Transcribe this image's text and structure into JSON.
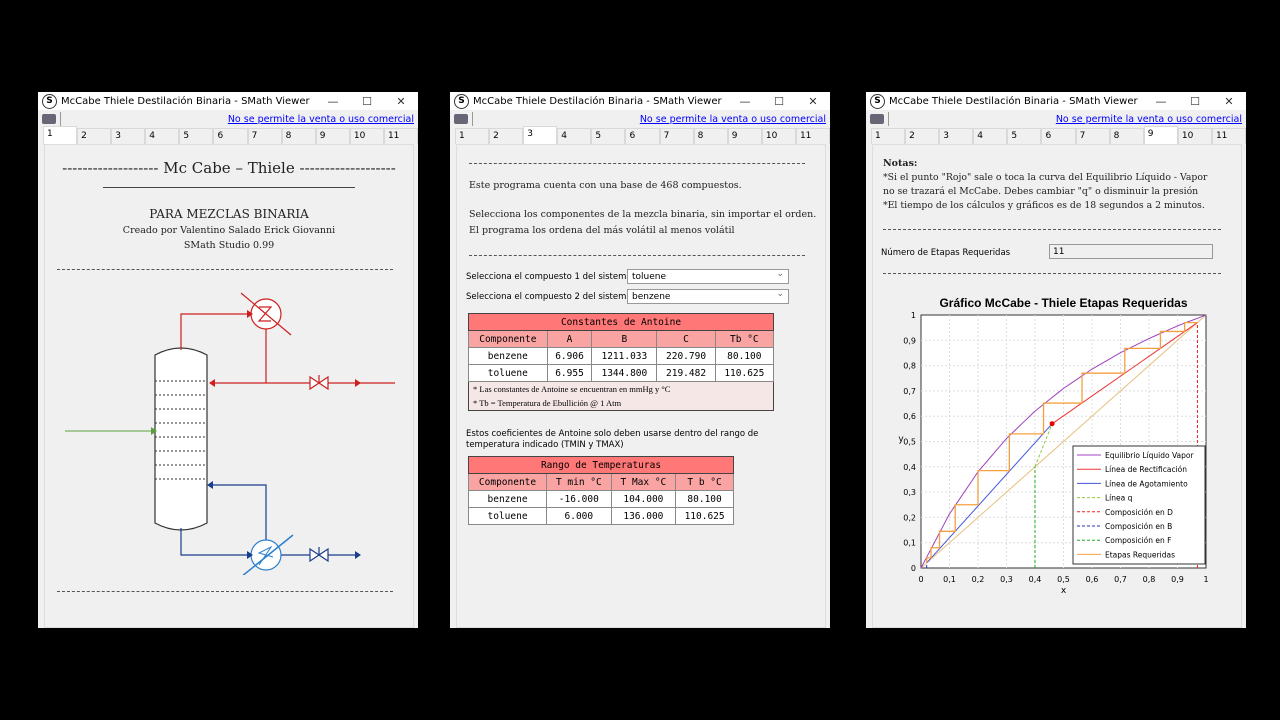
{
  "window_title": "McCabe Thiele Destilación Binaria - SMath Viewer",
  "window_controls": {
    "minimize": "—",
    "maximize": "☐",
    "close": "✕"
  },
  "notice_link": "No se permite la venta o uso comercial",
  "tabs": [
    "1",
    "2",
    "3",
    "4",
    "5",
    "6",
    "7",
    "8",
    "9",
    "10",
    "11"
  ],
  "windows": [
    {
      "active_tab": "1",
      "heading": "Mc Cabe – Thiele",
      "subtitle": "PARA MEZCLAS BINARIA",
      "author": "Creado por Valentino Salado Erick Giovanni",
      "software": "SMath Studio 0.99",
      "diagram_colors": {
        "top": "#cc1f1f",
        "bottom": "#1a3c8c",
        "feed": "#5aa03c",
        "reboiler": "#2a7fcf"
      }
    },
    {
      "active_tab": "3",
      "intro": "Este programa cuenta con una base de 468 compuestos.",
      "instr1": "Selecciona los componentes de la mezcla binaria, sin importar el orden.",
      "instr2": "El programa los ordena del más volátil al menos volátil",
      "select1": {
        "label": "Selecciona el compuesto 1 del sistema",
        "value": "toluene"
      },
      "select2": {
        "label": "Selecciona el compuesto 2 del sistema",
        "value": "benzene"
      },
      "antoine": {
        "title": "Constantes de Antoine",
        "headers": [
          "Componente",
          "A",
          "B",
          "C",
          "Tb °C"
        ],
        "rows": [
          [
            "benzene",
            "6.906",
            "1211.033",
            "220.790",
            "80.100"
          ],
          [
            "toluene",
            "6.955",
            "1344.800",
            "219.482",
            "110.625"
          ]
        ],
        "note1": "* Las constantes de Antoine se encuentran en    mmHg y °C",
        "note2": "* Tb = Temperatura de Ebullición @ 1 Atm"
      },
      "range_note": "Estos coeficientes de Antoine solo deben usarse dentro del rango de temperatura indicado (TMIN y TMAX)",
      "ranges": {
        "title": "Rango de Temperaturas",
        "headers": [
          "Componente",
          "T min °C",
          "T Max °C",
          "T b  °C"
        ],
        "rows": [
          [
            "benzene",
            "-16.000",
            "104.000",
            "80.100"
          ],
          [
            "toluene",
            "6.000",
            "136.000",
            "110.625"
          ]
        ]
      }
    },
    {
      "active_tab": "9",
      "notes_title": "Notas:",
      "note1": "*Si el punto \"Rojo\" sale o toca la curva del Equilibrio Líquido - Vapor",
      "note2": "no se trazará el McCabe. Debes cambiar \"q\" o disminuir la presión",
      "note3": "*El tiempo de los cálculos y gráficos es de 18 segundos a 2 minutos.",
      "stages_label": "Número de Etapas Requeridas",
      "stages_value": "11"
    }
  ],
  "chart_data": {
    "type": "line",
    "title": "Gráfico McCabe - Thiele  Etapas Requeridas",
    "xlabel": "x",
    "ylabel": "y",
    "xlim": [
      0,
      1
    ],
    "ylim": [
      0,
      1
    ],
    "grid": true,
    "legend": "bottom-right",
    "ticks": [
      "0",
      "0,1",
      "0,2",
      "0,3",
      "0,4",
      "0,5",
      "0,6",
      "0,7",
      "0,8",
      "0,9",
      "1"
    ],
    "series": [
      {
        "name": "Equilibrio Líquido Vapor",
        "color": "#a040c0",
        "dash": false,
        "points": [
          [
            0,
            0
          ],
          [
            0.1,
            0.214
          ],
          [
            0.2,
            0.38
          ],
          [
            0.3,
            0.512
          ],
          [
            0.4,
            0.62
          ],
          [
            0.5,
            0.71
          ],
          [
            0.6,
            0.786
          ],
          [
            0.7,
            0.851
          ],
          [
            0.8,
            0.907
          ],
          [
            0.9,
            0.957
          ],
          [
            1,
            1
          ]
        ]
      },
      {
        "name": "Línea de Rectificación",
        "color": "#ee3333",
        "dash": false,
        "points": [
          [
            0.46,
            0.57
          ],
          [
            0.97,
            0.97
          ]
        ]
      },
      {
        "name": "Línea de Agotamiento",
        "color": "#4455dd",
        "dash": false,
        "points": [
          [
            0.02,
            0.02
          ],
          [
            0.46,
            0.57
          ]
        ]
      },
      {
        "name": "Línea q",
        "color": "#88cc44",
        "dash": true,
        "points": [
          [
            0.4,
            0.4
          ],
          [
            0.46,
            0.57
          ]
        ]
      },
      {
        "name": "Composición en D",
        "color": "#ee2222",
        "dash": true,
        "points": [
          [
            0.97,
            0
          ],
          [
            0.97,
            0.97
          ]
        ]
      },
      {
        "name": "Composición en B",
        "color": "#2233bb",
        "dash": true,
        "points": [
          [
            0.02,
            0
          ],
          [
            0.02,
            0.02
          ]
        ]
      },
      {
        "name": "Composición en F",
        "color": "#22aa22",
        "dash": true,
        "points": [
          [
            0.4,
            0
          ],
          [
            0.4,
            0.4
          ]
        ]
      },
      {
        "name": "Etapas Requeridas",
        "color": "#f5a040",
        "dash": false,
        "points": [
          [
            0.97,
            0.97
          ],
          [
            0.925,
            0.97
          ],
          [
            0.925,
            0.935
          ],
          [
            0.84,
            0.935
          ],
          [
            0.84,
            0.868
          ],
          [
            0.715,
            0.868
          ],
          [
            0.715,
            0.77
          ],
          [
            0.565,
            0.77
          ],
          [
            0.565,
            0.652
          ],
          [
            0.43,
            0.652
          ],
          [
            0.43,
            0.53
          ],
          [
            0.31,
            0.53
          ],
          [
            0.31,
            0.385
          ],
          [
            0.2,
            0.385
          ],
          [
            0.2,
            0.25
          ],
          [
            0.12,
            0.25
          ],
          [
            0.12,
            0.145
          ],
          [
            0.065,
            0.145
          ],
          [
            0.065,
            0.08
          ],
          [
            0.035,
            0.08
          ],
          [
            0.035,
            0.04
          ],
          [
            0.02,
            0.04
          ],
          [
            0.02,
            0.02
          ]
        ]
      }
    ],
    "diagonal_color": "#e8c080",
    "feed_point": {
      "x": 0.46,
      "y": 0.57,
      "color": "#ee0000"
    }
  }
}
